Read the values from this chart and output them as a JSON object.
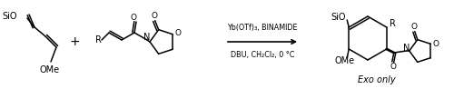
{
  "background_color": "#ffffff",
  "reagents_line1": "Yb(OTf)₃, BINAMIDE",
  "reagents_line2": "DBU, CH₂Cl₂, 0 °C",
  "label_bottom": "Exo only",
  "font_color": "#000000"
}
